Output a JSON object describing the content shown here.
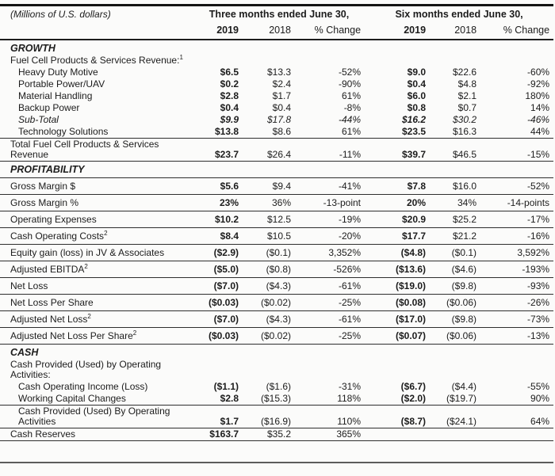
{
  "page": {
    "units_label": "(Millions of U.S. dollars)"
  },
  "colors": {
    "text": "#1c1c1c",
    "rules": "#2e2e2e",
    "bottom_rule": "#5c5c5c",
    "background": "#fbfbfa"
  },
  "header": {
    "groups": [
      {
        "label": "Three months ended June 30,"
      },
      {
        "label": "Six months ended June 30,"
      }
    ],
    "columns": [
      {
        "label": "2019",
        "emphasis": true
      },
      {
        "label": "2018",
        "emphasis": false
      },
      {
        "label": "% Change",
        "emphasis": false
      },
      {
        "label": "2019",
        "emphasis": true
      },
      {
        "label": "2018",
        "emphasis": false
      },
      {
        "label": "% Change",
        "emphasis": false
      }
    ]
  },
  "sections": [
    {
      "title": "GROWTH",
      "title_rule": false,
      "rows": [
        {
          "label": "Fuel Cell Products & Services Revenue:",
          "sup": "1",
          "indent": 0,
          "italic": false,
          "rule": false,
          "values": [
            "",
            "",
            "",
            "",
            "",
            ""
          ]
        },
        {
          "label": "Heavy Duty Motive",
          "sup": "",
          "indent": 1,
          "italic": false,
          "rule": false,
          "values": [
            "$6.5",
            "$13.3",
            "-52%",
            "$9.0",
            "$22.6",
            "-60%"
          ]
        },
        {
          "label": "Portable Power/UAV",
          "sup": "",
          "indent": 1,
          "italic": false,
          "rule": false,
          "values": [
            "$0.2",
            "$2.4",
            "-90%",
            "$0.4",
            "$4.8",
            "-92%"
          ]
        },
        {
          "label": "Material Handling",
          "sup": "",
          "indent": 1,
          "italic": false,
          "rule": false,
          "values": [
            "$2.8",
            "$1.7",
            "61%",
            "$6.0",
            "$2.1",
            "180%"
          ]
        },
        {
          "label": "Backup Power",
          "sup": "",
          "indent": 1,
          "italic": false,
          "rule": false,
          "values": [
            "$0.4",
            "$0.4",
            "-8%",
            "$0.8",
            "$0.7",
            "14%"
          ]
        },
        {
          "label": "Sub-Total",
          "sup": "",
          "indent": 1,
          "italic": true,
          "rule": false,
          "values": [
            "$9.9",
            "$17.8",
            "-44%",
            "$16.2",
            "$30.2",
            "-46%"
          ]
        },
        {
          "label": "Technology Solutions",
          "sup": "",
          "indent": 1,
          "italic": false,
          "rule": true,
          "values": [
            "$13.8",
            "$8.6",
            "61%",
            "$23.5",
            "$16.3",
            "44%"
          ]
        },
        {
          "label": "Total Fuel Cell Products & Services Revenue",
          "sup": "",
          "indent": 0,
          "italic": false,
          "rule": true,
          "values": [
            "$23.7",
            "$26.4",
            "-11%",
            "$39.7",
            "$46.5",
            "-15%"
          ]
        }
      ]
    },
    {
      "title": "PROFITABILITY",
      "title_rule": true,
      "rows": [
        {
          "label": "Gross Margin $",
          "sup": "",
          "indent": 0,
          "italic": false,
          "rule": true,
          "values": [
            "$5.6",
            "$9.4",
            "-41%",
            "$7.8",
            "$16.0",
            "-52%"
          ]
        },
        {
          "label": "Gross Margin %",
          "sup": "",
          "indent": 0,
          "italic": false,
          "rule": true,
          "values": [
            "23%",
            "36%",
            "-13-point",
            "20%",
            "34%",
            "-14-points"
          ]
        },
        {
          "label": "Operating Expenses",
          "sup": "",
          "indent": 0,
          "italic": false,
          "rule": true,
          "values": [
            "$10.2",
            "$12.5",
            "-19%",
            "$20.9",
            "$25.2",
            "-17%"
          ]
        },
        {
          "label": "Cash Operating Costs",
          "sup": "2",
          "indent": 0,
          "italic": false,
          "rule": true,
          "values": [
            "$8.4",
            "$10.5",
            "-20%",
            "$17.7",
            "$21.2",
            "-16%"
          ]
        },
        {
          "label": "Equity gain (loss) in JV & Associates",
          "sup": "",
          "indent": 0,
          "italic": false,
          "rule": true,
          "values": [
            "($2.9)",
            "($0.1)",
            "3,352%",
            "($4.8)",
            "($0.1)",
            "3,592%"
          ]
        },
        {
          "label": "Adjusted EBITDA",
          "sup": "2",
          "indent": 0,
          "italic": false,
          "rule": true,
          "values": [
            "($5.0)",
            "($0.8)",
            "-526%",
            "($13.6)",
            "($4.6)",
            "-193%"
          ]
        },
        {
          "label": "Net Loss",
          "sup": "",
          "indent": 0,
          "italic": false,
          "rule": true,
          "values": [
            "($7.0)",
            "($4.3)",
            "-61%",
            "($19.0)",
            "($9.8)",
            "-93%"
          ]
        },
        {
          "label": "Net Loss Per Share",
          "sup": "",
          "indent": 0,
          "italic": false,
          "rule": true,
          "values": [
            "($0.03)",
            "($0.02)",
            "-25%",
            "($0.08)",
            "($0.06)",
            "-26%"
          ]
        },
        {
          "label": "Adjusted Net Loss",
          "sup": "2",
          "indent": 0,
          "italic": false,
          "rule": true,
          "values": [
            "($7.0)",
            "($4.3)",
            "-61%",
            "($17.0)",
            "($9.8)",
            "-73%"
          ]
        },
        {
          "label": "Adjusted Net Loss Per Share",
          "sup": "2",
          "indent": 0,
          "italic": false,
          "rule": true,
          "values": [
            "($0.03)",
            "($0.02)",
            "-25%",
            "($0.07)",
            "($0.06)",
            "-13%"
          ]
        }
      ]
    },
    {
      "title": "CASH",
      "title_rule": false,
      "rows": [
        {
          "label": "Cash Provided (Used) by Operating Activities:",
          "sup": "",
          "indent": 0,
          "italic": false,
          "rule": false,
          "values": [
            "",
            "",
            "",
            "",
            "",
            ""
          ]
        },
        {
          "label": "Cash Operating Income (Loss)",
          "sup": "",
          "indent": 1,
          "italic": false,
          "rule": false,
          "values": [
            "($1.1)",
            "($1.6)",
            "-31%",
            "($6.7)",
            "($4.4)",
            "-55%"
          ]
        },
        {
          "label": "Working Capital Changes",
          "sup": "",
          "indent": 1,
          "italic": false,
          "rule": true,
          "values": [
            "$2.8",
            "($15.3)",
            "118%",
            "($2.0)",
            "($19.7)",
            "90%"
          ]
        },
        {
          "label": "Cash Provided (Used) By Operating Activities",
          "sup": "",
          "indent": 1,
          "italic": false,
          "rule": true,
          "values": [
            "$1.7",
            "($16.9)",
            "110%",
            "($8.7)",
            "($24.1)",
            "64%"
          ]
        },
        {
          "label": "Cash Reserves",
          "sup": "",
          "indent": 0,
          "italic": false,
          "rule": true,
          "values": [
            "$163.7",
            "$35.2",
            "365%",
            "",
            "",
            ""
          ]
        }
      ]
    }
  ]
}
